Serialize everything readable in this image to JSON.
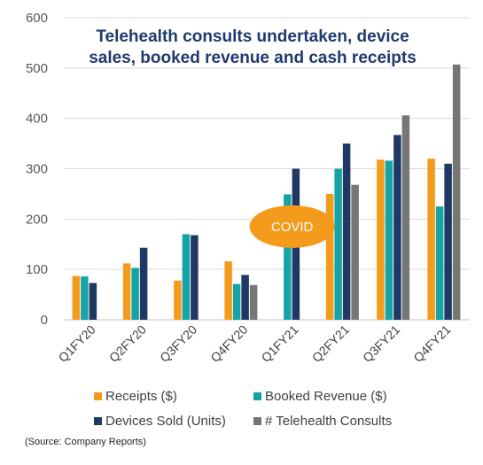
{
  "chart_data": {
    "type": "bar",
    "title_lines": [
      "Telehealth consults undertaken, device",
      "sales, booked revenue and cash receipts"
    ],
    "categories": [
      "Q1FY20",
      "Q2FY20",
      "Q3FY20",
      "Q4FY20",
      "Q1FY21",
      "Q2FY21",
      "Q3FY21",
      "Q4FY21"
    ],
    "ylim": [
      0,
      600
    ],
    "yticks": [
      0,
      100,
      200,
      300,
      400,
      500,
      600
    ],
    "grid": true,
    "legend_position": "bottom",
    "series": [
      {
        "name": "Receipts ($)",
        "color": "#f59b1c",
        "values": [
          87,
          112,
          78,
          116,
          null,
          250,
          318,
          320
        ]
      },
      {
        "name": "Booked Revenue ($)",
        "color": "#16a3a5",
        "values": [
          86,
          103,
          170,
          71,
          249,
          300,
          316,
          225
        ]
      },
      {
        "name": "Devices Sold (Units)",
        "color": "#1f3864",
        "values": [
          73,
          143,
          168,
          89,
          300,
          350,
          367,
          310
        ]
      },
      {
        "name": "# Telehealth Consults",
        "color": "#767676",
        "values": [
          null,
          null,
          null,
          69,
          null,
          268,
          406,
          507
        ]
      }
    ],
    "annotations": [
      {
        "text": "COVID",
        "color": "#f59b1c",
        "category": "Q1FY21",
        "y": 185
      }
    ]
  },
  "source_note": "(Source: Company Reports)"
}
